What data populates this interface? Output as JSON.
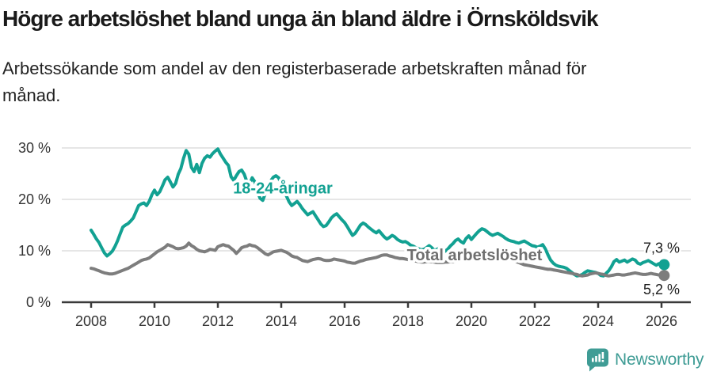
{
  "header": {
    "title": "Högre arbetslöshet bland unga än bland äldre i Örnsköldsvik",
    "subtitle_lines": [
      "Arbetssökande som andel av den registerbaserade arbetskraften månad för",
      "månad."
    ]
  },
  "colors": {
    "background": "#ffffff",
    "title_text": "#1a1a1a",
    "axis": "#3a3a3a",
    "grid": "#d8d8d8",
    "tick_text": "#333333",
    "youth": "#12a192",
    "total": "#7d7d7d",
    "brand": "#3f9c95"
  },
  "chart_data": {
    "type": "line",
    "title": "Högre arbetslöshet bland unga än bland äldre i Örnsköldsvik",
    "subtitle": "Arbetssökande som andel av den registerbaserade arbetskraften månad för månad.",
    "grid": "horizontal",
    "legend_position": "inline-labels",
    "x_axis": {
      "tick_years": [
        2008,
        2010,
        2012,
        2014,
        2016,
        2018,
        2020,
        2022,
        2024,
        2026
      ],
      "tick_labels": [
        "2008",
        "2010",
        "2012",
        "2014",
        "2016",
        "2018",
        "2020",
        "2022",
        "2024",
        "2026"
      ],
      "range": [
        2007.1,
        2026.9
      ]
    },
    "y_axis": {
      "tick_values": [
        0,
        10,
        20,
        30
      ],
      "tick_labels": [
        "0 %",
        "10 %",
        "20 %",
        "30 %"
      ],
      "range": [
        0,
        31
      ]
    },
    "series": [
      {
        "id": "youth",
        "name": "18-24-åringar",
        "color": "#12a192",
        "start_year": 2008,
        "interval_months": 1,
        "end_value": 7.3,
        "end_label": "7,3 %",
        "values": [
          14.0,
          13.2,
          12.3,
          11.6,
          10.6,
          9.6,
          9.0,
          9.4,
          9.9,
          10.8,
          11.9,
          13.3,
          14.6,
          15.0,
          15.3,
          15.8,
          16.4,
          17.6,
          18.8,
          19.1,
          19.3,
          18.8,
          19.6,
          20.9,
          21.8,
          20.9,
          21.5,
          22.6,
          23.8,
          24.3,
          23.4,
          22.4,
          23.1,
          24.9,
          26.0,
          28.0,
          29.5,
          28.8,
          26.2,
          25.4,
          26.8,
          25.2,
          27.0,
          28.0,
          28.5,
          28.2,
          28.9,
          29.4,
          29.8,
          28.8,
          28.0,
          27.2,
          26.6,
          24.4,
          23.7,
          24.6,
          25.4,
          25.7,
          24.9,
          23.4,
          22.9,
          24.2,
          23.4,
          21.5,
          20.2,
          19.8,
          21.2,
          22.6,
          23.6,
          24.3,
          24.6,
          24.2,
          23.0,
          21.8,
          20.6,
          19.5,
          18.8,
          19.2,
          19.6,
          19.0,
          18.2,
          17.6,
          17.0,
          17.3,
          17.6,
          16.8,
          16.0,
          15.2,
          14.7,
          14.9,
          15.6,
          16.4,
          16.9,
          17.2,
          16.6,
          16.0,
          15.5,
          14.7,
          13.8,
          13.0,
          13.4,
          14.2,
          15.0,
          15.4,
          15.1,
          14.6,
          14.2,
          13.8,
          13.5,
          13.9,
          13.3,
          12.7,
          12.3,
          12.6,
          13.0,
          12.7,
          12.2,
          11.9,
          11.7,
          11.8,
          11.5,
          11.1,
          10.9,
          10.6,
          10.4,
          10.2,
          10.3,
          10.6,
          11.0,
          10.6,
          10.1,
          10.3,
          10.6,
          10.2,
          9.9,
          10.3,
          10.9,
          11.4,
          12.0,
          12.3,
          11.8,
          11.5,
          12.4,
          12.9,
          12.2,
          12.8,
          13.4,
          13.9,
          14.3,
          14.1,
          13.7,
          13.3,
          13.0,
          13.2,
          13.4,
          13.1,
          12.8,
          12.4,
          12.1,
          11.9,
          11.8,
          11.6,
          11.5,
          11.7,
          11.9,
          11.6,
          11.3,
          11.0,
          10.9,
          10.7,
          10.9,
          11.2,
          10.4,
          9.2,
          8.2,
          7.6,
          7.2,
          7.0,
          6.9,
          6.8,
          6.6,
          6.2,
          5.8,
          5.4,
          5.1,
          5.2,
          5.4,
          5.8,
          6.1,
          6.0,
          5.9,
          5.8,
          5.6,
          5.2,
          5.1,
          5.6,
          6.1,
          6.9,
          7.9,
          8.3,
          7.8,
          8.0,
          8.2,
          7.8,
          8.1,
          8.4,
          8.2,
          7.6,
          7.4,
          7.7,
          7.9,
          8.1,
          7.8,
          7.5,
          7.2,
          7.5,
          7.6,
          7.3
        ]
      },
      {
        "id": "total",
        "name": "Total arbetslöshet",
        "color": "#7d7d7d",
        "start_year": 2008,
        "interval_months": 1,
        "end_value": 5.2,
        "end_label": "5,2 %",
        "values": [
          6.6,
          6.5,
          6.3,
          6.1,
          5.9,
          5.7,
          5.6,
          5.5,
          5.5,
          5.6,
          5.8,
          6.0,
          6.2,
          6.4,
          6.6,
          6.9,
          7.2,
          7.5,
          7.8,
          8.1,
          8.3,
          8.4,
          8.6,
          9.0,
          9.4,
          9.8,
          10.1,
          10.4,
          10.7,
          11.2,
          11.0,
          10.8,
          10.5,
          10.4,
          10.5,
          10.6,
          10.9,
          11.5,
          11.0,
          10.7,
          10.3,
          10.0,
          9.9,
          9.8,
          10.0,
          10.3,
          10.2,
          10.1,
          10.8,
          11.0,
          11.2,
          11.0,
          10.9,
          10.5,
          10.1,
          9.5,
          10.0,
          10.6,
          10.8,
          10.9,
          11.2,
          11.0,
          10.9,
          10.6,
          10.2,
          9.8,
          9.4,
          9.2,
          9.5,
          9.8,
          9.9,
          10.0,
          10.1,
          9.9,
          9.7,
          9.4,
          9.0,
          8.8,
          8.7,
          8.4,
          8.1,
          8.0,
          7.9,
          8.1,
          8.3,
          8.4,
          8.5,
          8.4,
          8.2,
          8.1,
          8.1,
          8.2,
          8.4,
          8.3,
          8.2,
          8.1,
          8.0,
          7.8,
          7.7,
          7.6,
          7.6,
          7.8,
          8.0,
          8.1,
          8.3,
          8.4,
          8.5,
          8.6,
          8.7,
          8.9,
          9.1,
          9.2,
          9.2,
          9.0,
          8.9,
          8.7,
          8.6,
          8.5,
          8.5,
          8.4,
          8.3,
          8.2,
          8.1,
          8.0,
          7.9,
          7.8,
          7.8,
          7.9,
          7.9,
          7.9,
          7.8,
          7.7,
          7.7,
          7.7,
          7.8,
          7.8,
          7.9,
          7.9,
          8.0,
          8.0,
          8.1,
          8.1,
          8.2,
          8.3,
          8.4,
          8.7,
          9.0,
          9.3,
          9.5,
          9.6,
          9.6,
          9.5,
          9.4,
          9.2,
          9.1,
          9.0,
          8.9,
          8.7,
          8.5,
          8.3,
          8.1,
          7.9,
          7.7,
          7.5,
          7.3,
          7.2,
          7.1,
          7.0,
          6.9,
          6.8,
          6.7,
          6.6,
          6.5,
          6.4,
          6.4,
          6.3,
          6.2,
          6.1,
          6.0,
          5.9,
          5.8,
          5.7,
          5.6,
          5.5,
          5.4,
          5.2,
          5.1,
          5.2,
          5.3,
          5.5,
          5.6,
          5.7,
          5.6,
          5.5,
          5.4,
          5.2,
          5.1,
          5.2,
          5.3,
          5.4,
          5.4,
          5.3,
          5.3,
          5.4,
          5.5,
          5.6,
          5.7,
          5.6,
          5.5,
          5.4,
          5.4,
          5.5,
          5.6,
          5.5,
          5.4,
          5.3,
          5.3,
          5.2
        ]
      }
    ],
    "annotations": [
      {
        "series": "youth",
        "text": "18-24-åringar",
        "x": 2014.05,
        "y": 22.2,
        "color": "#12a192"
      },
      {
        "series": "total",
        "text": "Total arbetslöshet",
        "x": 2020.1,
        "y": 9.2,
        "color": "#6f6f6f"
      }
    ]
  },
  "footer": {
    "brand": "Newsworthy",
    "logo_icon": "newsworthy-bar-chart-bubble-icon"
  }
}
